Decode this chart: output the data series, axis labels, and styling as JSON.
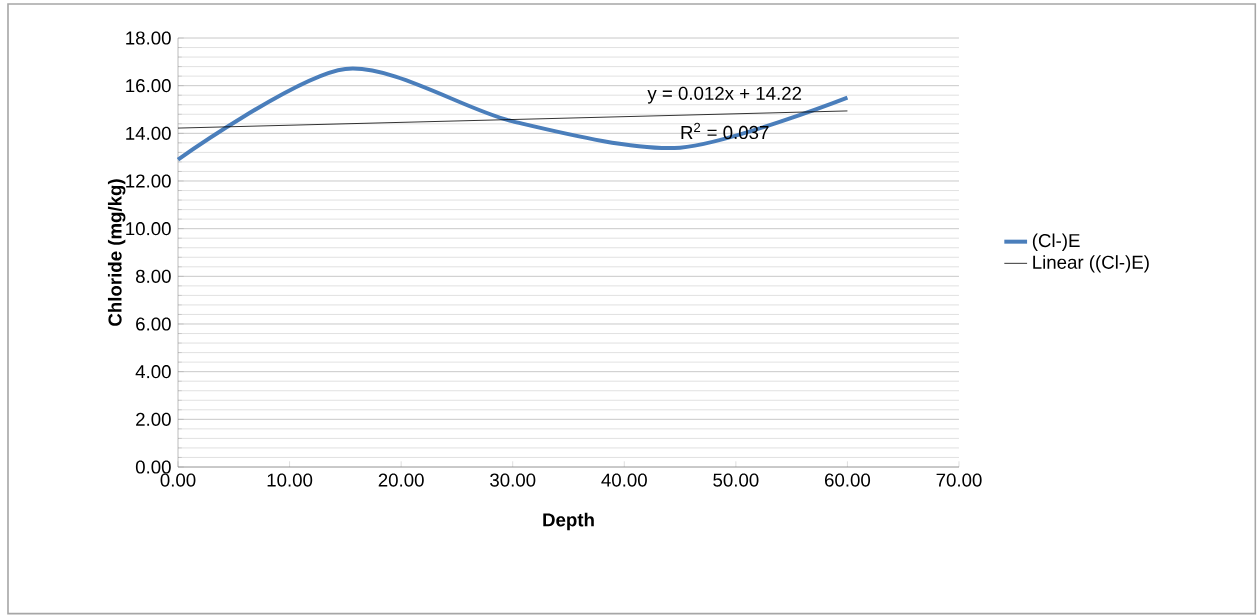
{
  "chart_data": {
    "type": "line",
    "xlabel": "Depth",
    "ylabel": "Chloride (mg/kg)",
    "series": [
      {
        "name": "(Cl-)E",
        "color": "#4a7ebb",
        "x": [
          0,
          15,
          30,
          45,
          60
        ],
        "values": [
          12.9,
          16.7,
          14.5,
          13.4,
          15.5
        ]
      },
      {
        "name": "Linear ((Cl-)E)",
        "color": "#000000",
        "type": "line",
        "x": [
          0,
          60
        ],
        "values": [
          14.22,
          14.94
        ]
      }
    ],
    "annotations": [
      "y = 0.012x + 14.22",
      "R$^{2}$ = 0.037"
    ],
    "xlim": [
      0,
      70
    ],
    "ylim": [
      0,
      18
    ],
    "xticks": [
      {
        "value": 0,
        "label": "0.00"
      },
      {
        "value": 10,
        "label": "10.00"
      },
      {
        "value": 20,
        "label": "20.00"
      },
      {
        "value": 30,
        "label": "30.00"
      },
      {
        "value": 40,
        "label": "40.00"
      },
      {
        "value": 50,
        "label": "50.00"
      },
      {
        "value": 60,
        "label": "60.00"
      },
      {
        "value": 70,
        "label": "70.00"
      }
    ],
    "yticks": [
      {
        "value": 0,
        "label": "0.00"
      },
      {
        "value": 2,
        "label": "2.00"
      },
      {
        "value": 4,
        "label": "4.00"
      },
      {
        "value": 6,
        "label": "6.00"
      },
      {
        "value": 8,
        "label": "8.00"
      },
      {
        "value": 10,
        "label": "10.00"
      },
      {
        "value": 12,
        "label": "12.00"
      },
      {
        "value": 14,
        "label": "14.00"
      },
      {
        "value": 16,
        "label": "16.00"
      },
      {
        "value": 18,
        "label": "18.00"
      }
    ],
    "grid": "y",
    "legend": "right",
    "marker": "none"
  }
}
